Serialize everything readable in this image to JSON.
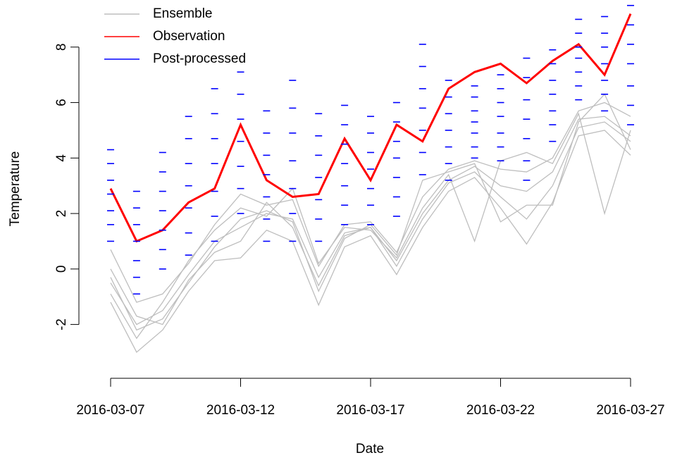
{
  "chart_data": {
    "type": "line",
    "xlabel": "Date",
    "ylabel": "Temperature",
    "x": [
      "2016-03-07",
      "2016-03-08",
      "2016-03-09",
      "2016-03-10",
      "2016-03-11",
      "2016-03-12",
      "2016-03-13",
      "2016-03-14",
      "2016-03-15",
      "2016-03-16",
      "2016-03-17",
      "2016-03-18",
      "2016-03-19",
      "2016-03-20",
      "2016-03-21",
      "2016-03-22",
      "2016-03-23",
      "2016-03-24",
      "2016-03-25",
      "2016-03-26",
      "2016-03-27"
    ],
    "xticks": [
      "2016-03-07",
      "2016-03-12",
      "2016-03-17",
      "2016-03-22",
      "2016-03-27"
    ],
    "ylim": [
      -3.94,
      9.57
    ],
    "yticks": [
      -2,
      0,
      2,
      4,
      6,
      8
    ],
    "legend": "top-left",
    "series": [
      {
        "name": "Ensemble",
        "color": "#bebebe",
        "style": "lines",
        "members": [
          [
            -0.5,
            -2.0,
            -1.5,
            -0.2,
            1.0,
            1.5,
            2.0,
            1.8,
            -0.3,
            1.3,
            1.5,
            0.3,
            2.0,
            3.2,
            3.7,
            3.0,
            2.8,
            3.5,
            5.4,
            5.5,
            4.8
          ],
          [
            0.7,
            -1.2,
            -0.9,
            0.2,
            1.6,
            2.7,
            2.3,
            2.5,
            0.1,
            1.6,
            1.7,
            0.6,
            2.6,
            3.6,
            3.9,
            3.6,
            3.5,
            4.0,
            5.7,
            6.0,
            5.5
          ],
          [
            -1.2,
            -3.0,
            -2.2,
            -0.8,
            0.3,
            0.4,
            1.4,
            1.0,
            -1.3,
            0.8,
            1.2,
            -0.2,
            1.5,
            2.8,
            3.3,
            2.2,
            0.9,
            2.4,
            4.8,
            5.0,
            4.1
          ],
          [
            0.0,
            -1.7,
            -2.0,
            -0.4,
            0.6,
            1.0,
            2.4,
            1.5,
            -0.6,
            1.2,
            1.5,
            0.1,
            1.8,
            3.1,
            3.5,
            2.6,
            1.8,
            3.0,
            5.1,
            5.3,
            4.6
          ],
          [
            -0.9,
            -2.5,
            -1.2,
            0.3,
            1.4,
            2.2,
            1.9,
            2.9,
            0.2,
            1.5,
            1.4,
            0.4,
            2.2,
            3.4,
            1.0,
            3.9,
            4.2,
            3.8,
            5.6,
            2.0,
            5.0
          ],
          [
            -0.3,
            -2.2,
            -1.8,
            -0.5,
            0.8,
            1.8,
            2.1,
            1.7,
            -0.8,
            1.1,
            1.6,
            0.5,
            3.2,
            3.5,
            3.8,
            1.7,
            2.3,
            2.3,
            5.3,
            6.3,
            4.3
          ]
        ]
      },
      {
        "name": "Observation",
        "color": "#ff0000",
        "style": "line",
        "values": [
          2.9,
          1.0,
          1.4,
          2.4,
          2.9,
          5.2,
          3.2,
          2.6,
          2.7,
          4.7,
          3.2,
          5.2,
          4.6,
          6.5,
          7.1,
          7.4,
          6.7,
          7.5,
          8.1,
          7.0,
          9.2
        ]
      },
      {
        "name": "Post-processed",
        "color": "#0000ff",
        "style": "dashes",
        "values": [
          [
            1.0,
            1.6,
            2.1,
            2.7,
            3.2,
            3.8,
            4.3
          ],
          [
            -0.9,
            -0.3,
            0.3,
            1.0,
            1.6,
            2.2,
            2.8
          ],
          [
            0.0,
            0.7,
            1.4,
            2.1,
            2.8,
            3.5,
            4.2
          ],
          [
            0.5,
            1.3,
            2.2,
            3.0,
            3.8,
            4.7,
            5.5
          ],
          [
            1.0,
            1.9,
            2.8,
            3.8,
            4.7,
            5.6,
            6.5
          ],
          [
            2.0,
            2.9,
            3.7,
            4.6,
            5.4,
            6.3,
            7.1
          ],
          [
            1.0,
            1.8,
            2.6,
            3.4,
            4.1,
            4.9,
            5.7
          ],
          [
            1.0,
            2.0,
            2.9,
            3.9,
            4.9,
            5.8,
            6.8
          ],
          [
            1.0,
            1.8,
            2.5,
            3.3,
            4.1,
            4.8,
            5.6
          ],
          [
            1.6,
            2.3,
            3.0,
            3.8,
            4.5,
            5.2,
            5.9
          ],
          [
            1.6,
            2.3,
            2.9,
            3.6,
            4.2,
            4.9,
            5.5
          ],
          [
            1.9,
            2.6,
            3.3,
            4.0,
            4.6,
            5.3,
            6.0
          ],
          [
            3.4,
            4.2,
            5.0,
            5.8,
            6.5,
            7.3,
            8.1
          ],
          [
            3.2,
            3.8,
            4.4,
            5.0,
            5.6,
            6.2,
            6.8
          ],
          [
            4.0,
            4.4,
            4.9,
            5.3,
            5.7,
            6.2,
            6.6
          ],
          [
            3.9,
            4.4,
            4.9,
            5.5,
            6.0,
            6.5,
            7.0
          ],
          [
            3.2,
            3.9,
            4.7,
            5.4,
            6.1,
            6.9,
            7.6
          ],
          [
            4.6,
            5.2,
            5.7,
            6.3,
            6.8,
            7.4,
            7.9
          ],
          [
            6.1,
            6.6,
            7.1,
            7.6,
            8.0,
            8.5,
            9.0
          ],
          [
            5.7,
            6.3,
            6.8,
            7.4,
            8.0,
            8.5,
            9.1
          ],
          [
            5.2,
            5.9,
            6.6,
            7.4,
            8.1,
            8.8,
            9.5
          ]
        ]
      }
    ]
  }
}
